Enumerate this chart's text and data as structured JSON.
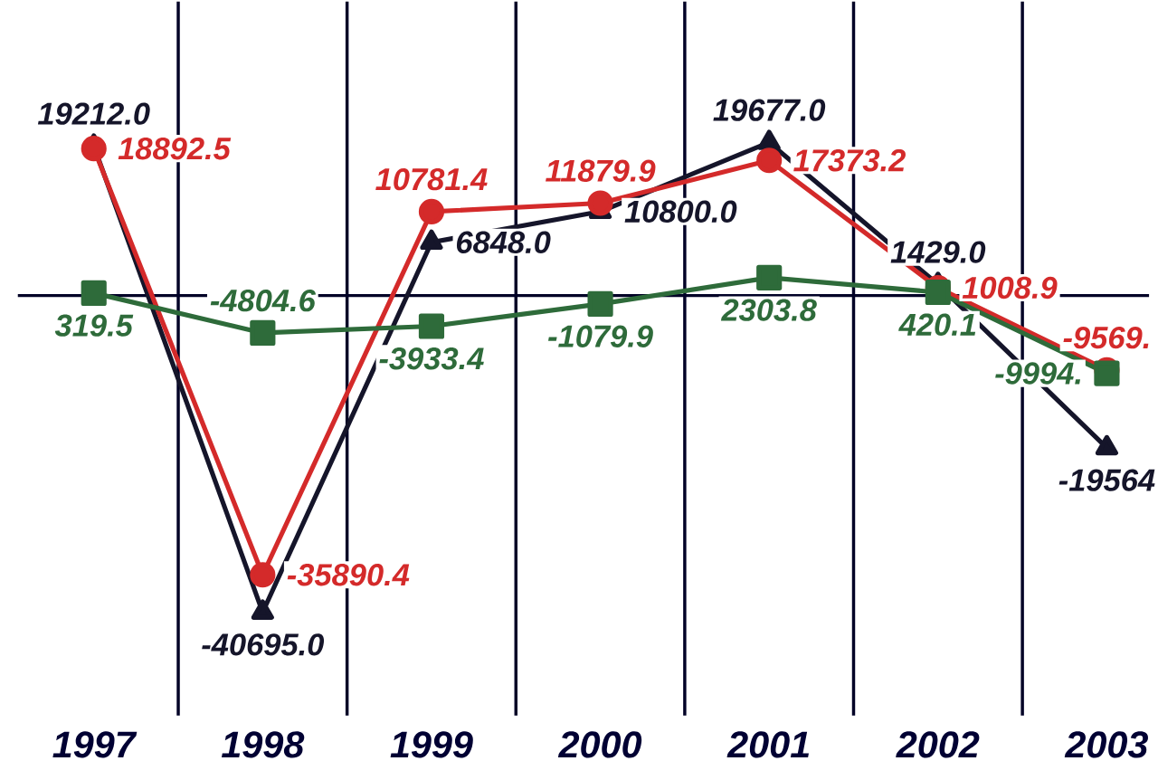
{
  "chart_data": {
    "type": "line",
    "categories": [
      "1997",
      "1998",
      "1999",
      "2000",
      "2001",
      "2002",
      "2003"
    ],
    "series": [
      {
        "color": "#15152a",
        "marker": "triangle",
        "values": [
          19212.0,
          -40695.0,
          6848.0,
          10800.0,
          19677.0,
          1429.0,
          -19564
        ],
        "value_labels": [
          "19212.0",
          "-40695.0",
          "6848.0",
          "10800.0",
          "19677.0",
          "1429.0",
          "-19564"
        ]
      },
      {
        "color": "#d42a2a",
        "marker": "circle",
        "values": [
          18892.5,
          -35890.4,
          10781.4,
          11879.9,
          17373.2,
          1008.9,
          -9569
        ],
        "value_labels": [
          "18892.5",
          "-35890.4",
          "10781.4",
          "11879.9",
          "17373.2",
          "1008.9",
          "-9569."
        ]
      },
      {
        "color": "#2e6b3a",
        "marker": "square",
        "values": [
          319.5,
          -4804.6,
          -3933.4,
          -1079.9,
          2303.8,
          420.1,
          -9994
        ],
        "value_labels": [
          "319.5",
          "-4804.6",
          "-3933.4",
          "-1079.9",
          "2303.8",
          "420.1",
          "-9994."
        ]
      }
    ],
    "grid": "x",
    "legend": false
  }
}
